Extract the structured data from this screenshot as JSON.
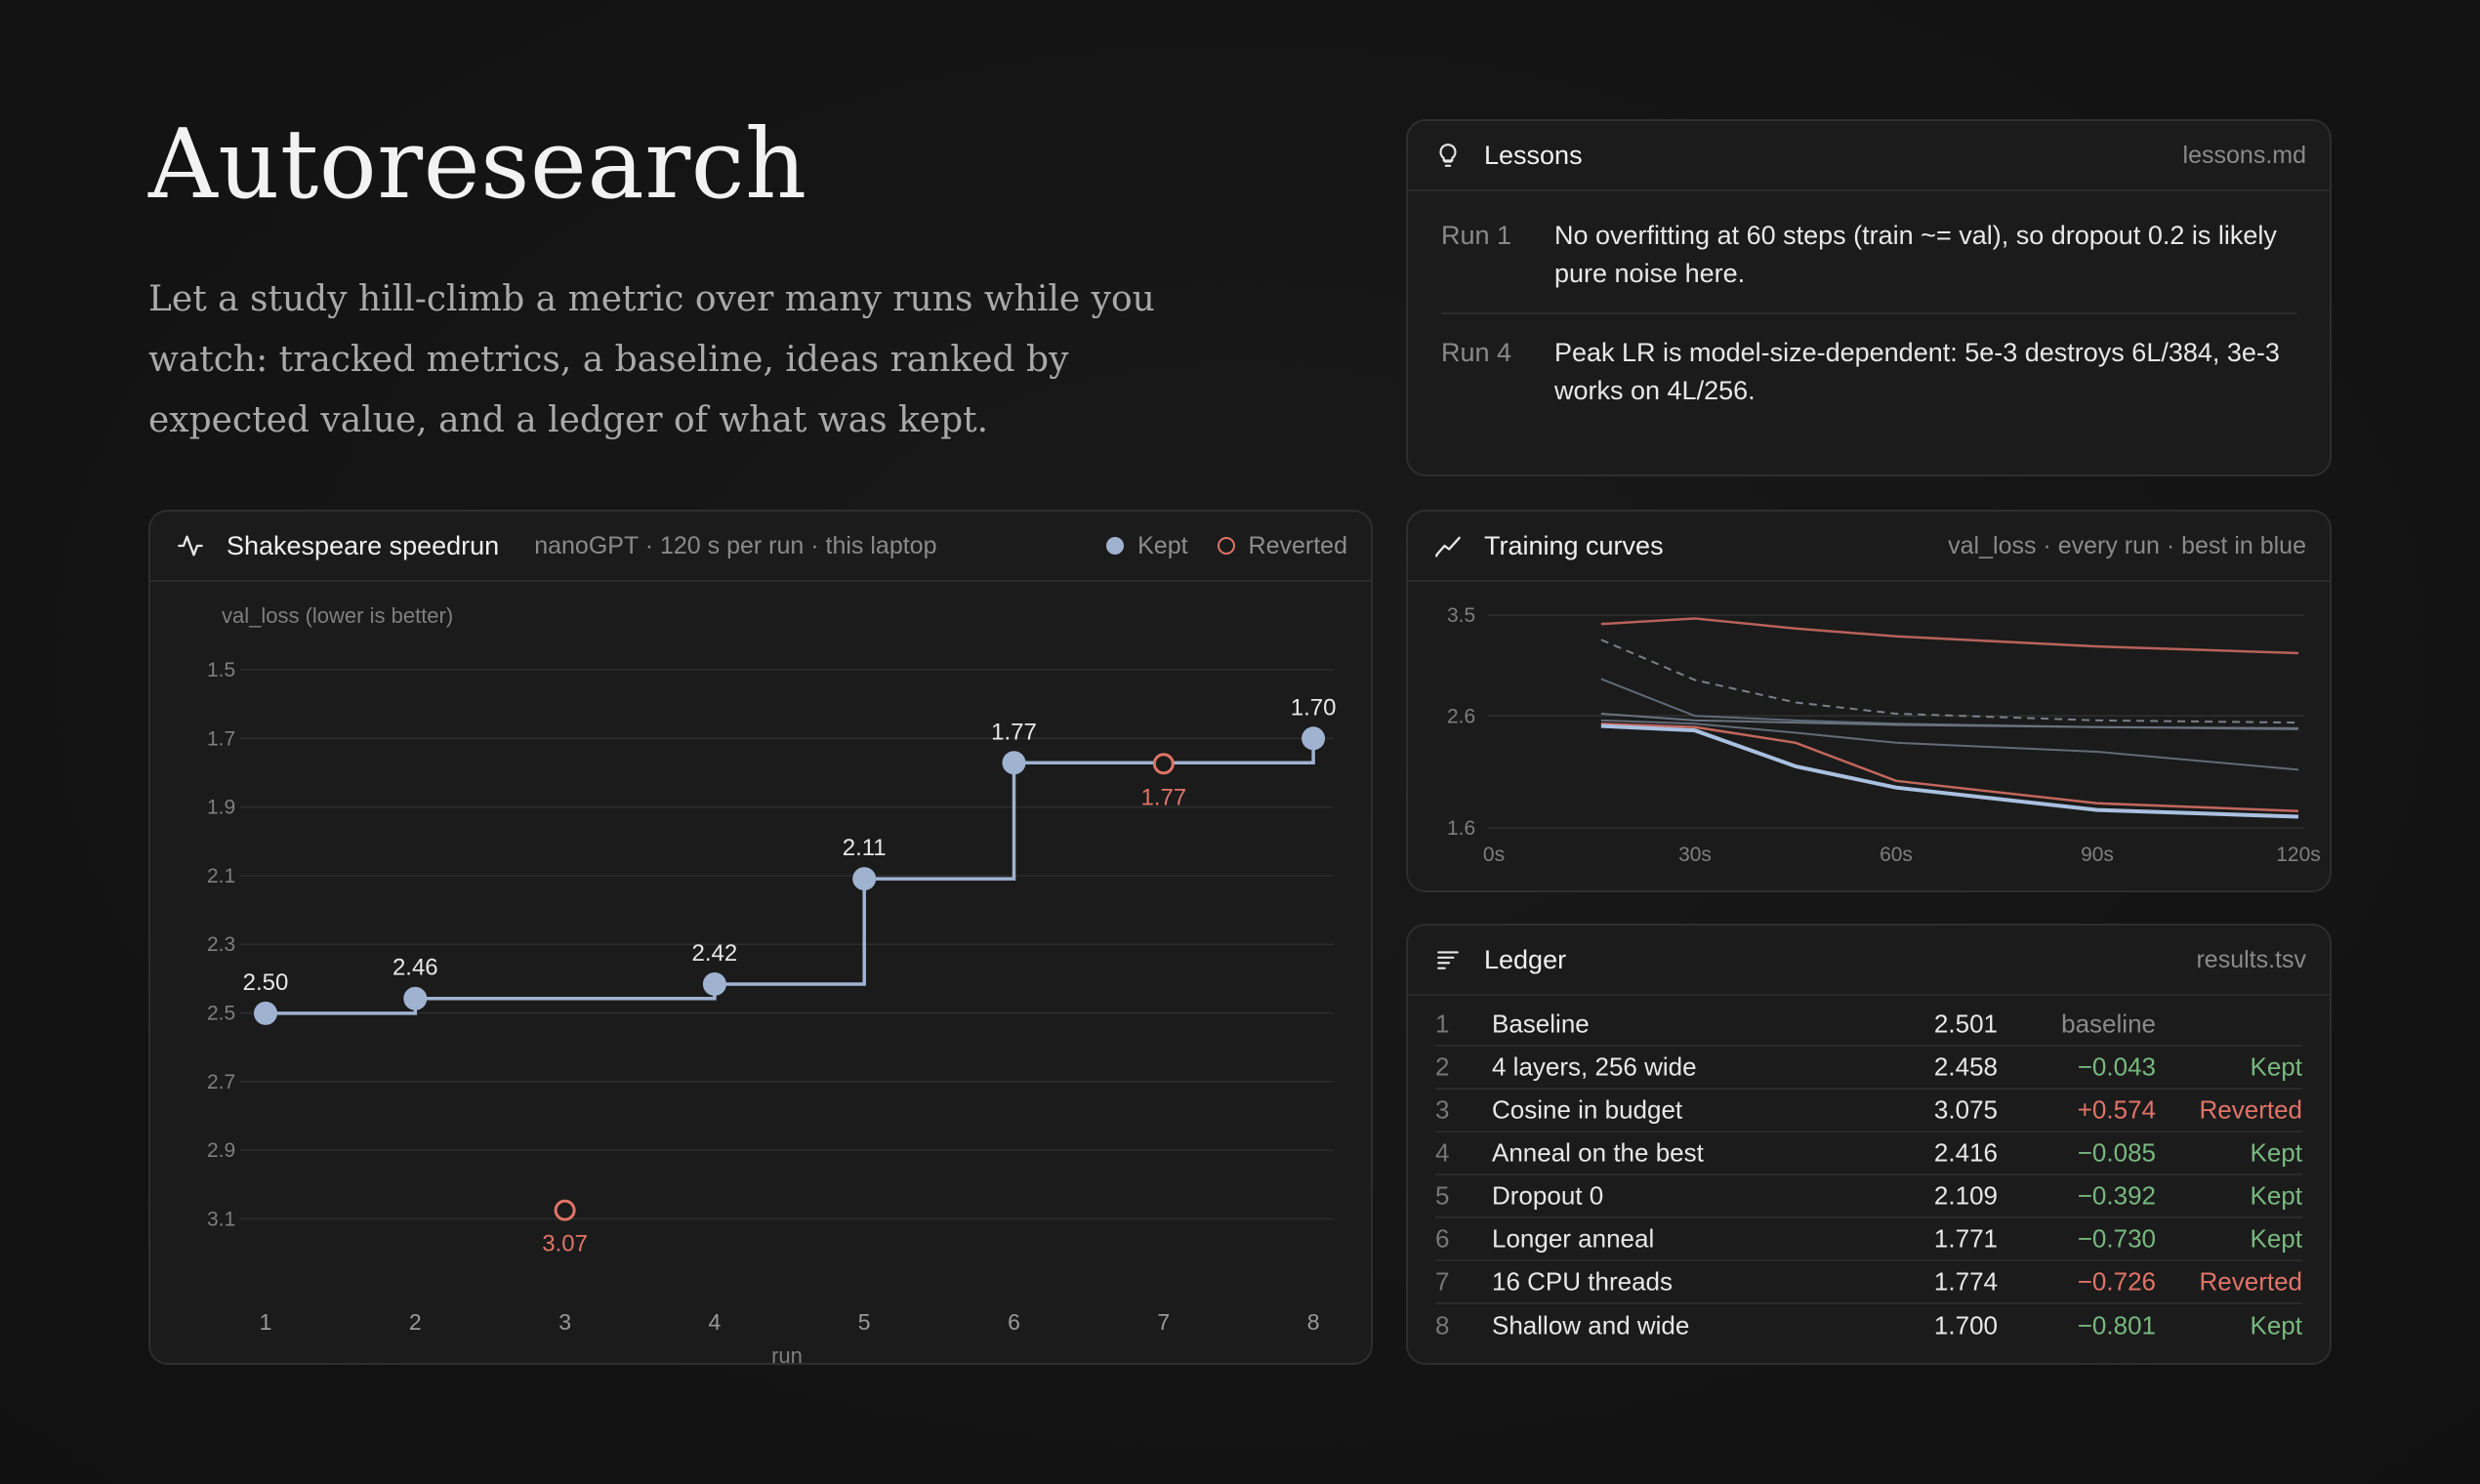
{
  "hero": {
    "title": "Autoresearch",
    "description": "Let a study hill-climb a metric over many runs while you watch: tracked metrics, a baseline, ideas ranked by expected value, and a ledger of what was kept."
  },
  "speedrun": {
    "title": "Shakespeare speedrun",
    "subtitle": "nanoGPT · 120 s per run · this laptop",
    "legend_kept": "Kept",
    "legend_reverted": "Reverted",
    "chart_data": {
      "type": "line",
      "ylabel": "val_loss (lower is better)",
      "xlabel": "run",
      "ylim": [
        1.5,
        3.1
      ],
      "y_inverted": true,
      "y_ticks": [
        "1.5",
        "1.7",
        "1.9",
        "2.1",
        "2.3",
        "2.5",
        "2.7",
        "2.9",
        "3.1"
      ],
      "x_ticks": [
        "1",
        "2",
        "3",
        "4",
        "5",
        "6",
        "7",
        "8"
      ],
      "grid": true,
      "series": [
        {
          "name": "Kept",
          "style": "step",
          "color": "#9fb3d1",
          "points": [
            {
              "x": 1,
              "y": 2.501,
              "label": "2.50"
            },
            {
              "x": 2,
              "y": 2.458,
              "label": "2.46"
            },
            {
              "x": 4,
              "y": 2.416,
              "label": "2.42"
            },
            {
              "x": 5,
              "y": 2.109,
              "label": "2.11"
            },
            {
              "x": 6,
              "y": 1.771,
              "label": "1.77"
            },
            {
              "x": 8,
              "y": 1.7,
              "label": "1.70"
            }
          ]
        },
        {
          "name": "Reverted",
          "style": "hollow",
          "color": "#e07468",
          "points": [
            {
              "x": 3,
              "y": 3.075,
              "label": "3.07"
            },
            {
              "x": 7,
              "y": 1.774,
              "label": "1.77"
            }
          ]
        }
      ]
    }
  },
  "lessons": {
    "title": "Lessons",
    "file": "lessons.md",
    "items": [
      {
        "run": "Run 1",
        "text": "No overfitting at 60 steps (train ~= val), so dropout 0.2 is likely pure noise here."
      },
      {
        "run": "Run 4",
        "text": "Peak LR is model-size-dependent: 5e-3 destroys 6L/384, 3e-3 works on 4L/256."
      }
    ]
  },
  "curves": {
    "title": "Training curves",
    "subtitle": "val_loss · every run · best in blue",
    "chart_data": {
      "type": "line",
      "x_ticks": [
        "0s",
        "30s",
        "60s",
        "90s",
        "120s"
      ],
      "y_ticks": [
        "3.5",
        "2.6",
        "1.6"
      ],
      "xlim": [
        0,
        120
      ],
      "ylim": [
        1.6,
        3.5
      ],
      "grid": true,
      "series": [
        {
          "color": "#b8615a",
          "width": 2.5,
          "dash": false,
          "x": [
            16,
            30,
            45,
            60,
            90,
            120
          ],
          "y": [
            3.42,
            3.47,
            3.38,
            3.31,
            3.22,
            3.16
          ]
        },
        {
          "color": "#7a7f88",
          "width": 2,
          "dash": true,
          "x": [
            16,
            30,
            45,
            60,
            90,
            120
          ],
          "y": [
            3.28,
            2.92,
            2.72,
            2.62,
            2.56,
            2.54
          ]
        },
        {
          "color": "#5f6b7a",
          "width": 2,
          "dash": false,
          "x": [
            16,
            30,
            45,
            60,
            90,
            120
          ],
          "y": [
            2.93,
            2.6,
            2.56,
            2.53,
            2.5,
            2.48
          ]
        },
        {
          "color": "#6a7380",
          "width": 2,
          "dash": false,
          "x": [
            16,
            30,
            45,
            60,
            90,
            120
          ],
          "y": [
            2.62,
            2.56,
            2.54,
            2.52,
            2.5,
            2.49
          ]
        },
        {
          "color": "#626b77",
          "width": 2,
          "dash": false,
          "x": [
            16,
            30,
            45,
            60,
            90,
            120
          ],
          "y": [
            2.56,
            2.53,
            2.45,
            2.36,
            2.28,
            2.12
          ]
        },
        {
          "color": "#c2675d",
          "width": 2.5,
          "dash": false,
          "x": [
            16,
            30,
            45,
            60,
            90,
            120
          ],
          "y": [
            2.53,
            2.5,
            2.36,
            2.02,
            1.82,
            1.75
          ]
        },
        {
          "color": "#a9c0e0",
          "width": 4,
          "dash": false,
          "x": [
            16,
            30,
            45,
            60,
            90,
            120
          ],
          "y": [
            2.51,
            2.47,
            2.15,
            1.96,
            1.76,
            1.7
          ]
        }
      ]
    }
  },
  "ledger": {
    "title": "Ledger",
    "file": "results.tsv",
    "rows": [
      {
        "n": "1",
        "name": "Baseline",
        "val": "2.501",
        "delta": "baseline",
        "status": "",
        "tone": "muted"
      },
      {
        "n": "2",
        "name": "4 layers, 256 wide",
        "val": "2.458",
        "delta": "−0.043",
        "status": "Kept",
        "tone": "green"
      },
      {
        "n": "3",
        "name": "Cosine in budget",
        "val": "3.075",
        "delta": "+0.574",
        "status": "Reverted",
        "tone": "red"
      },
      {
        "n": "4",
        "name": "Anneal on the best",
        "val": "2.416",
        "delta": "−0.085",
        "status": "Kept",
        "tone": "green"
      },
      {
        "n": "5",
        "name": "Dropout 0",
        "val": "2.109",
        "delta": "−0.392",
        "status": "Kept",
        "tone": "green"
      },
      {
        "n": "6",
        "name": "Longer anneal",
        "val": "1.771",
        "delta": "−0.730",
        "status": "Kept",
        "tone": "green"
      },
      {
        "n": "7",
        "name": "16 CPU threads",
        "val": "1.774",
        "delta": "−0.726",
        "status": "Reverted",
        "tone": "red"
      },
      {
        "n": "8",
        "name": "Shallow and wide",
        "val": "1.700",
        "delta": "−0.801",
        "status": "Kept",
        "tone": "green"
      }
    ]
  },
  "colors": {
    "kept": "#9fb3d1",
    "reverted": "#e07468",
    "green": "#78b87f",
    "background": "#141414",
    "card": "#1b1b1b"
  }
}
